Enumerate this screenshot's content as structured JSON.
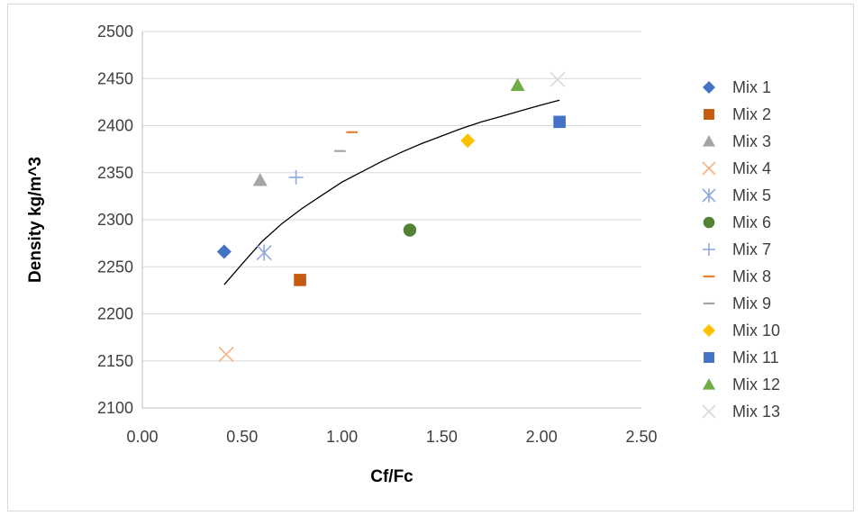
{
  "chart_data": {
    "type": "scatter",
    "title": "",
    "xlabel": "Cf/Fc",
    "ylabel": "Density kg/m^3",
    "xlim": [
      0,
      2.5
    ],
    "ylim": [
      2100,
      2500
    ],
    "x_ticks": [
      "0.00",
      "0.50",
      "1.00",
      "1.50",
      "2.00",
      "2.50"
    ],
    "y_ticks": [
      "2100",
      "2150",
      "2200",
      "2250",
      "2300",
      "2350",
      "2400",
      "2450",
      "2500"
    ],
    "grid": "horizontal",
    "legend_position": "right",
    "series": [
      {
        "name": "Mix 1",
        "marker": "diamond",
        "color": "#4472C4",
        "x": 0.41,
        "y": 2266
      },
      {
        "name": "Mix 2",
        "marker": "square",
        "color": "#C55A11",
        "x": 0.79,
        "y": 2236
      },
      {
        "name": "Mix 3",
        "marker": "triangle",
        "color": "#A5A5A5",
        "x": 0.59,
        "y": 2342
      },
      {
        "name": "Mix 4",
        "marker": "x",
        "color": "#F4B183",
        "x": 0.42,
        "y": 2157
      },
      {
        "name": "Mix 5",
        "marker": "star",
        "color": "#8FAADC",
        "x": 0.61,
        "y": 2265
      },
      {
        "name": "Mix 6",
        "marker": "circle",
        "color": "#548235",
        "x": 1.34,
        "y": 2289
      },
      {
        "name": "Mix 7",
        "marker": "plus",
        "color": "#8FAADC",
        "x": 0.77,
        "y": 2345
      },
      {
        "name": "Mix 8",
        "marker": "dash",
        "color": "#ED7D31",
        "x": 1.05,
        "y": 2393
      },
      {
        "name": "Mix 9",
        "marker": "dash",
        "color": "#A5A5A5",
        "x": 0.99,
        "y": 2373
      },
      {
        "name": "Mix 10",
        "marker": "diamond",
        "color": "#FFC000",
        "x": 1.63,
        "y": 2384
      },
      {
        "name": "Mix 11",
        "marker": "square",
        "color": "#4472C4",
        "x": 2.09,
        "y": 2404
      },
      {
        "name": "Mix 12",
        "marker": "triangle",
        "color": "#70AD47",
        "x": 1.88,
        "y": 2443
      },
      {
        "name": "Mix 13",
        "marker": "x",
        "color": "#D9D9D9",
        "x": 2.08,
        "y": 2449
      }
    ],
    "trendline": {
      "type": "logarithmic",
      "color": "#000000",
      "points": [
        [
          0.41,
          2231
        ],
        [
          0.5,
          2253
        ],
        [
          0.6,
          2277
        ],
        [
          0.7,
          2296
        ],
        [
          0.8,
          2312
        ],
        [
          0.9,
          2326
        ],
        [
          1.0,
          2340
        ],
        [
          1.1,
          2351
        ],
        [
          1.2,
          2362
        ],
        [
          1.3,
          2372
        ],
        [
          1.4,
          2381
        ],
        [
          1.5,
          2389
        ],
        [
          1.6,
          2397
        ],
        [
          1.7,
          2404
        ],
        [
          1.8,
          2410
        ],
        [
          1.9,
          2416
        ],
        [
          2.0,
          2422
        ],
        [
          2.09,
          2427
        ]
      ]
    }
  }
}
